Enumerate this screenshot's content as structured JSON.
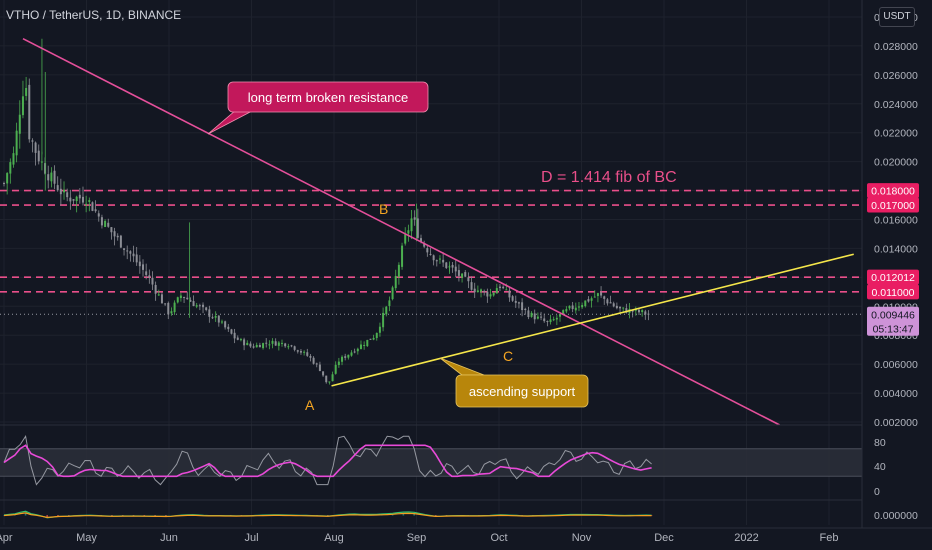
{
  "header": {
    "symbol_title": "VTHO / TetherUS, 1D, BINANCE",
    "currency_button": "USDT"
  },
  "colors": {
    "background": "#131722",
    "up": "#4caf50",
    "down": "#8c8e95",
    "resistance_line": "#e44f9a",
    "support_line": "#f5e64a",
    "level_line": "#e94f8a",
    "label_orange": "#f5a623",
    "callout_pink_bg": "#c2185b",
    "callout_orange_bg": "#b8860b",
    "price_tag_pink": "#e91e63",
    "price_tag_current": "#ce93d8",
    "rsi": "#e84ad8",
    "macd_signal": "#f59d1e",
    "macd_line": "#33c16e"
  },
  "annotations": {
    "resistance_callout": "long term broken resistance",
    "support_callout": "ascending support",
    "fib_text": "D = 1.414 fib of BC",
    "point_a": "A",
    "point_b": "B",
    "point_c": "C"
  },
  "chart_data": [
    {
      "type": "candlestick",
      "title": "VTHO / TetherUS, 1D, BINANCE",
      "x_tick_labels": [
        "Apr",
        "May",
        "Jun",
        "Jul",
        "Aug",
        "Sep",
        "Oct",
        "Nov",
        "Dec",
        "2022",
        "Feb"
      ],
      "y_tick_labels": [
        "0.002000",
        "0.004000",
        "0.006000",
        "0.008000",
        "0.010000",
        "0.012000",
        "0.014000",
        "0.016000",
        "0.018000",
        "0.020000",
        "0.022000",
        "0.024000",
        "0.026000",
        "0.028000",
        "0.030000"
      ],
      "ylim": [
        0.002,
        0.03
      ],
      "scale": "linear",
      "close_path_by_month_fraction": [
        [
          0.0,
          0.0185
        ],
        [
          0.05,
          0.0195
        ],
        [
          0.12,
          0.0205
        ],
        [
          0.2,
          0.024
        ],
        [
          0.26,
          0.026
        ],
        [
          0.3,
          0.022
        ],
        [
          0.4,
          0.0205
        ],
        [
          0.55,
          0.019
        ],
        [
          0.75,
          0.0175
        ],
        [
          1.0,
          0.0175
        ],
        [
          1.15,
          0.0162
        ],
        [
          1.35,
          0.0148
        ],
        [
          1.55,
          0.0135
        ],
        [
          1.75,
          0.012
        ],
        [
          1.9,
          0.0105
        ],
        [
          2.0,
          0.0095
        ],
        [
          2.15,
          0.0108
        ],
        [
          2.35,
          0.01
        ],
        [
          2.6,
          0.009
        ],
        [
          2.8,
          0.0078
        ],
        [
          3.0,
          0.0072
        ],
        [
          3.2,
          0.0075
        ],
        [
          3.45,
          0.0074
        ],
        [
          3.7,
          0.0065
        ],
        [
          3.85,
          0.0055
        ],
        [
          3.92,
          0.0045
        ],
        [
          4.05,
          0.0062
        ],
        [
          4.3,
          0.0072
        ],
        [
          4.5,
          0.008
        ],
        [
          4.7,
          0.0108
        ],
        [
          4.85,
          0.0145
        ],
        [
          4.95,
          0.0162
        ],
        [
          5.05,
          0.0145
        ],
        [
          5.25,
          0.0132
        ],
        [
          5.45,
          0.0125
        ],
        [
          5.7,
          0.0112
        ],
        [
          5.9,
          0.0108
        ],
        [
          6.0,
          0.0115
        ],
        [
          6.15,
          0.0105
        ],
        [
          6.35,
          0.0095
        ],
        [
          6.6,
          0.0088
        ],
        [
          6.85,
          0.0098
        ],
        [
          7.0,
          0.0102
        ],
        [
          7.2,
          0.0108
        ],
        [
          7.45,
          0.0098
        ],
        [
          7.7,
          0.0096
        ],
        [
          7.85,
          0.0094
        ]
      ],
      "key_points": [
        {
          "label": "A",
          "date": "Jul 21",
          "price": 0.0045
        },
        {
          "label": "B",
          "date": "Aug 16",
          "price": 0.0171
        },
        {
          "label": "C",
          "date": "Sep 29",
          "price": 0.0076
        }
      ],
      "horizontal_levels": [
        0.018,
        0.017,
        0.012012,
        0.011
      ],
      "last_price": 0.009446,
      "countdown": "05:13:47",
      "price_tags": [
        "0.018000",
        "0.017000",
        "0.012012",
        "0.011000",
        "0.009446"
      ],
      "trendlines": [
        {
          "name": "long term broken resistance",
          "from": [
            0.23,
            0.0285
          ],
          "to": [
            9.4,
            0.0018
          ]
        },
        {
          "name": "ascending support",
          "from": [
            3.97,
            0.0045
          ],
          "to": [
            10.3,
            0.0136
          ]
        }
      ]
    },
    {
      "type": "line",
      "panel": "RSI",
      "y_tick_labels": [
        "80",
        "40",
        "0"
      ],
      "band": [
        30,
        70
      ],
      "ylim": [
        0,
        100
      ]
    },
    {
      "type": "line",
      "panel": "MACD",
      "y_tick_labels": [
        "0.000000"
      ]
    }
  ]
}
